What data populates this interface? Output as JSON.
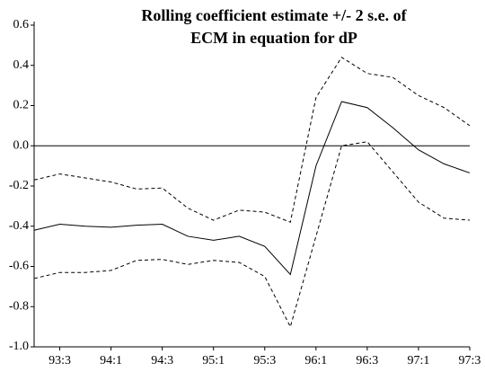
{
  "chart_data": {
    "type": "line",
    "title": [
      "Rolling coefficient estimate +/- 2 s.e. of",
      "ECM in equation for dP"
    ],
    "categories": [
      null,
      "93:3",
      null,
      "94:1",
      null,
      "94:3",
      null,
      "95:1",
      null,
      "95:3",
      null,
      "96:1",
      null,
      "96:3",
      null,
      "97:1",
      null,
      "97:3"
    ],
    "series": [
      {
        "color": "#000000",
        "dashed": false,
        "values": [
          -0.42,
          -0.39,
          -0.4,
          -0.405,
          -0.395,
          -0.39,
          -0.45,
          -0.47,
          -0.45,
          -0.5,
          -0.64,
          -0.1,
          0.22,
          0.19,
          0.09,
          -0.02,
          -0.09,
          -0.135
        ]
      },
      {
        "color": "#000000",
        "dashed": true,
        "values": [
          -0.17,
          -0.14,
          -0.16,
          -0.18,
          -0.215,
          -0.21,
          -0.31,
          -0.37,
          -0.32,
          -0.33,
          -0.38,
          0.24,
          0.44,
          0.36,
          0.34,
          0.25,
          0.19,
          0.1
        ]
      },
      {
        "color": "#000000",
        "dashed": true,
        "values": [
          -0.66,
          -0.63,
          -0.63,
          -0.62,
          -0.57,
          -0.565,
          -0.59,
          -0.57,
          -0.58,
          -0.65,
          -0.9,
          -0.45,
          0.0,
          0.02,
          -0.13,
          -0.28,
          -0.36,
          -0.37
        ]
      }
    ],
    "ylim": [
      -1.0,
      0.6
    ],
    "yticks": [
      0.6,
      0.4,
      0.2,
      {
        "value": 0,
        "label": "0.0"
      },
      -0.2,
      -0.4,
      -0.6,
      -0.8,
      {
        "value": -1,
        "label": "-1.0"
      }
    ],
    "zero_line": true
  }
}
